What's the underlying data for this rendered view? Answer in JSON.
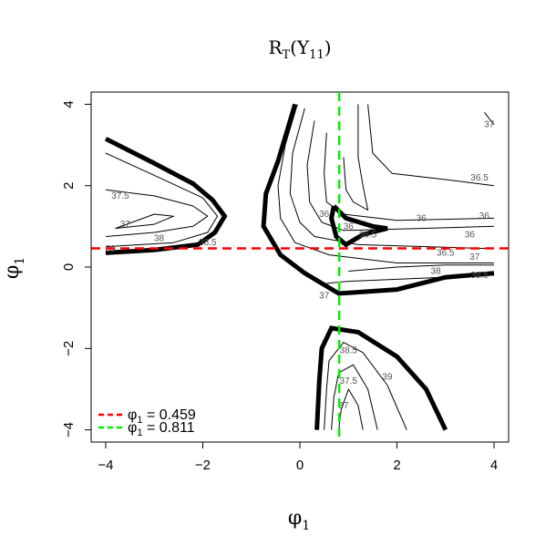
{
  "chart_data": {
    "type": "contour",
    "title_main": "R",
    "title_sub": "T",
    "title_arg_open": "(Υ",
    "title_arg_sub": "11",
    "title_arg_close": ")",
    "xlabel": "φ",
    "xlabel_sub": "1",
    "ylabel": "φ",
    "ylabel_sub": "1",
    "xlim": [
      -4.3,
      4.3
    ],
    "ylim": [
      -4.3,
      4.3
    ],
    "xticks": [
      -4,
      -2,
      0,
      2,
      4
    ],
    "yticks": [
      -4,
      -2,
      0,
      2,
      4
    ],
    "x_tick_labels": [
      "−4",
      "−2",
      "0",
      "2",
      "4"
    ],
    "y_tick_labels": [
      "−4",
      "−2",
      "0",
      "2",
      "4"
    ],
    "reference_lines": [
      {
        "orientation": "horizontal",
        "value": 0.459,
        "color": "#ff0000",
        "style": "dashed"
      },
      {
        "orientation": "vertical",
        "value": 0.811,
        "color": "#00ee00",
        "style": "dashed"
      }
    ],
    "legend": {
      "placement": "bottom-left",
      "entries": [
        {
          "symbol": "φ",
          "sub": "1",
          "text": " = 0.459",
          "color": "#ff0000"
        },
        {
          "symbol": "φ",
          "sub": "1",
          "text": " = 0.811",
          "color": "#00ee00"
        }
      ]
    },
    "contour_labels": [
      {
        "text": "37",
        "x": 3.9,
        "y": 3.5
      },
      {
        "text": "36.5",
        "x": 3.7,
        "y": 2.2
      },
      {
        "text": "36",
        "x": 3.8,
        "y": 1.25
      },
      {
        "text": "36",
        "x": 3.5,
        "y": 0.8
      },
      {
        "text": "36",
        "x": 2.5,
        "y": 1.2
      },
      {
        "text": "36.5",
        "x": 3.0,
        "y": 0.35
      },
      {
        "text": "37",
        "x": 3.6,
        "y": 0.25
      },
      {
        "text": "38",
        "x": 2.8,
        "y": -0.1
      },
      {
        "text": "38.5",
        "x": 3.7,
        "y": -0.2
      },
      {
        "text": "36",
        "x": 0.5,
        "y": 1.3
      },
      {
        "text": "36",
        "x": 1.0,
        "y": 1.0
      },
      {
        "text": "36.5",
        "x": 1.4,
        "y": 0.8
      },
      {
        "text": "37",
        "x": 0.5,
        "y": -0.7
      },
      {
        "text": "37.5",
        "x": -3.7,
        "y": 1.75
      },
      {
        "text": "37",
        "x": -3.6,
        "y": 1.05
      },
      {
        "text": "38",
        "x": -2.9,
        "y": 0.7
      },
      {
        "text": "38.5",
        "x": -1.9,
        "y": 0.6
      },
      {
        "text": "39",
        "x": -3.9,
        "y": 0.45
      },
      {
        "text": "38.5",
        "x": 1.0,
        "y": -2.05
      },
      {
        "text": "37.5",
        "x": 1.0,
        "y": -2.8
      },
      {
        "text": "37",
        "x": 0.9,
        "y": -3.4
      },
      {
        "text": "39",
        "x": 1.8,
        "y": -2.7
      }
    ],
    "thick_contours": [
      [
        [
          -4.0,
          3.15
        ],
        [
          -3.0,
          2.55
        ],
        [
          -2.2,
          2.05
        ],
        [
          -1.8,
          1.65
        ],
        [
          -1.55,
          1.25
        ],
        [
          -1.75,
          0.85
        ],
        [
          -2.1,
          0.55
        ],
        [
          -3.0,
          0.42
        ],
        [
          -4.0,
          0.35
        ]
      ],
      [
        [
          -0.1,
          4.0
        ],
        [
          -0.45,
          2.6
        ],
        [
          -0.7,
          1.8
        ],
        [
          -0.75,
          1.0
        ],
        [
          -0.4,
          0.3
        ],
        [
          0.1,
          -0.15
        ],
        [
          0.8,
          -0.65
        ],
        [
          2.0,
          -0.55
        ],
        [
          3.0,
          -0.25
        ],
        [
          4.0,
          -0.15
        ]
      ],
      [
        [
          0.7,
          1.5
        ],
        [
          0.95,
          1.2
        ],
        [
          1.5,
          1.0
        ],
        [
          1.8,
          0.95
        ],
        [
          1.3,
          0.8
        ],
        [
          0.95,
          0.55
        ],
        [
          0.75,
          0.75
        ],
        [
          0.65,
          1.2
        ],
        [
          0.7,
          1.5
        ]
      ],
      [
        [
          0.35,
          -4.0
        ],
        [
          0.4,
          -2.8
        ],
        [
          0.45,
          -2.0
        ],
        [
          0.65,
          -1.5
        ],
        [
          1.2,
          -1.6
        ],
        [
          2.0,
          -2.2
        ],
        [
          2.6,
          -3.0
        ],
        [
          3.0,
          -4.0
        ]
      ]
    ],
    "thin_contours": [
      [
        [
          -4.0,
          1.9
        ],
        [
          -3.0,
          1.75
        ],
        [
          -2.2,
          1.5
        ],
        [
          -1.9,
          1.25
        ],
        [
          -2.2,
          1.0
        ],
        [
          -3.0,
          0.85
        ],
        [
          -4.0,
          0.75
        ]
      ],
      [
        [
          -4.0,
          2.8
        ],
        [
          -2.9,
          2.2
        ],
        [
          -2.0,
          1.7
        ],
        [
          -1.7,
          1.25
        ],
        [
          -1.9,
          0.85
        ],
        [
          -2.6,
          0.6
        ],
        [
          -4.0,
          0.5
        ]
      ],
      [
        [
          -3.8,
          0.95
        ],
        [
          -3.0,
          1.3
        ],
        [
          -2.6,
          1.25
        ],
        [
          -3.0,
          1.05
        ],
        [
          -3.8,
          0.95
        ]
      ],
      [
        [
          -0.05,
          4.0
        ],
        [
          -0.3,
          3.0
        ],
        [
          -0.45,
          2.0
        ],
        [
          -0.4,
          1.2
        ],
        [
          -0.1,
          0.6
        ],
        [
          0.6,
          0.3
        ],
        [
          2.0,
          0.1
        ],
        [
          4.0,
          0.1
        ]
      ],
      [
        [
          0.1,
          3.9
        ],
        [
          -0.15,
          2.8
        ],
        [
          -0.2,
          1.8
        ],
        [
          0.0,
          1.1
        ],
        [
          0.3,
          0.75
        ],
        [
          1.2,
          0.55
        ],
        [
          4.0,
          0.45
        ]
      ],
      [
        [
          0.3,
          3.6
        ],
        [
          0.15,
          2.5
        ],
        [
          0.2,
          1.6
        ],
        [
          0.45,
          1.1
        ],
        [
          0.9,
          0.9
        ],
        [
          2.5,
          0.95
        ],
        [
          4.0,
          1.0
        ]
      ],
      [
        [
          0.55,
          3.3
        ],
        [
          0.5,
          2.3
        ],
        [
          0.55,
          1.6
        ],
        [
          0.9,
          1.3
        ],
        [
          2.0,
          1.15
        ],
        [
          4.0,
          1.2
        ]
      ],
      [
        [
          0.9,
          2.7
        ],
        [
          0.95,
          1.9
        ],
        [
          1.1,
          1.6
        ],
        [
          1.4,
          1.4
        ],
        [
          1.3,
          2.0
        ],
        [
          1.2,
          2.7
        ],
        [
          1.2,
          4.0
        ]
      ],
      [
        [
          1.4,
          4.0
        ],
        [
          1.5,
          2.8
        ],
        [
          1.9,
          2.3
        ],
        [
          3.0,
          2.15
        ],
        [
          4.0,
          2.0
        ]
      ],
      [
        [
          3.8,
          3.8
        ],
        [
          4.0,
          3.5
        ]
      ],
      [
        [
          0.5,
          -4.0
        ],
        [
          0.55,
          -3.0
        ],
        [
          0.6,
          -2.3
        ],
        [
          0.9,
          -1.85
        ],
        [
          1.3,
          -2.1
        ],
        [
          1.8,
          -2.9
        ],
        [
          2.2,
          -4.0
        ]
      ],
      [
        [
          0.65,
          -4.0
        ],
        [
          0.7,
          -3.2
        ],
        [
          0.8,
          -2.6
        ],
        [
          1.1,
          -2.4
        ],
        [
          1.4,
          -3.0
        ],
        [
          1.6,
          -4.0
        ]
      ],
      [
        [
          0.8,
          -4.0
        ],
        [
          0.85,
          -3.5
        ],
        [
          1.0,
          -3.0
        ],
        [
          1.2,
          -3.4
        ],
        [
          1.3,
          -4.0
        ]
      ],
      [
        [
          0.55,
          -0.4
        ],
        [
          1.0,
          -0.35
        ],
        [
          2.0,
          -0.3
        ],
        [
          4.0,
          -0.2
        ]
      ],
      [
        [
          1.0,
          -0.1
        ],
        [
          2.0,
          0.0
        ],
        [
          3.0,
          0.05
        ],
        [
          4.0,
          0.05
        ]
      ]
    ],
    "grid": false
  }
}
